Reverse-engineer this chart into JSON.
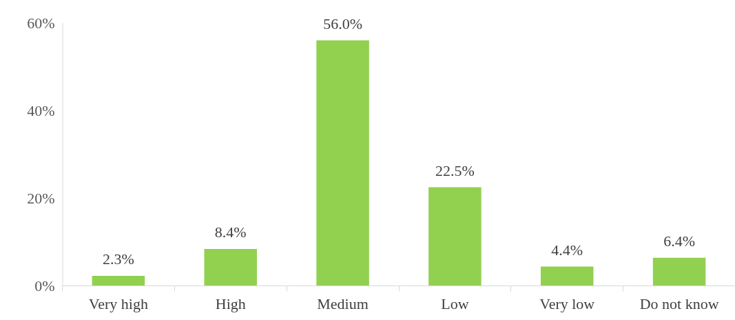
{
  "chart_data": {
    "type": "bar",
    "categories": [
      "Very high",
      "High",
      "Medium",
      "Low",
      "Very low",
      "Do not know"
    ],
    "values": [
      2.3,
      8.4,
      56.0,
      22.5,
      4.4,
      6.4
    ],
    "value_labels": [
      "2.3%",
      "8.4%",
      "56.0%",
      "22.5%",
      "4.4%",
      "6.4%"
    ],
    "color": "#92d050",
    "ylim": [
      0,
      60
    ],
    "yticks": [
      {
        "value": 0,
        "label": "0%"
      },
      {
        "value": 20,
        "label": "20%"
      },
      {
        "value": 40,
        "label": "40%"
      },
      {
        "value": 60,
        "label": "60%"
      }
    ],
    "grid": false
  }
}
